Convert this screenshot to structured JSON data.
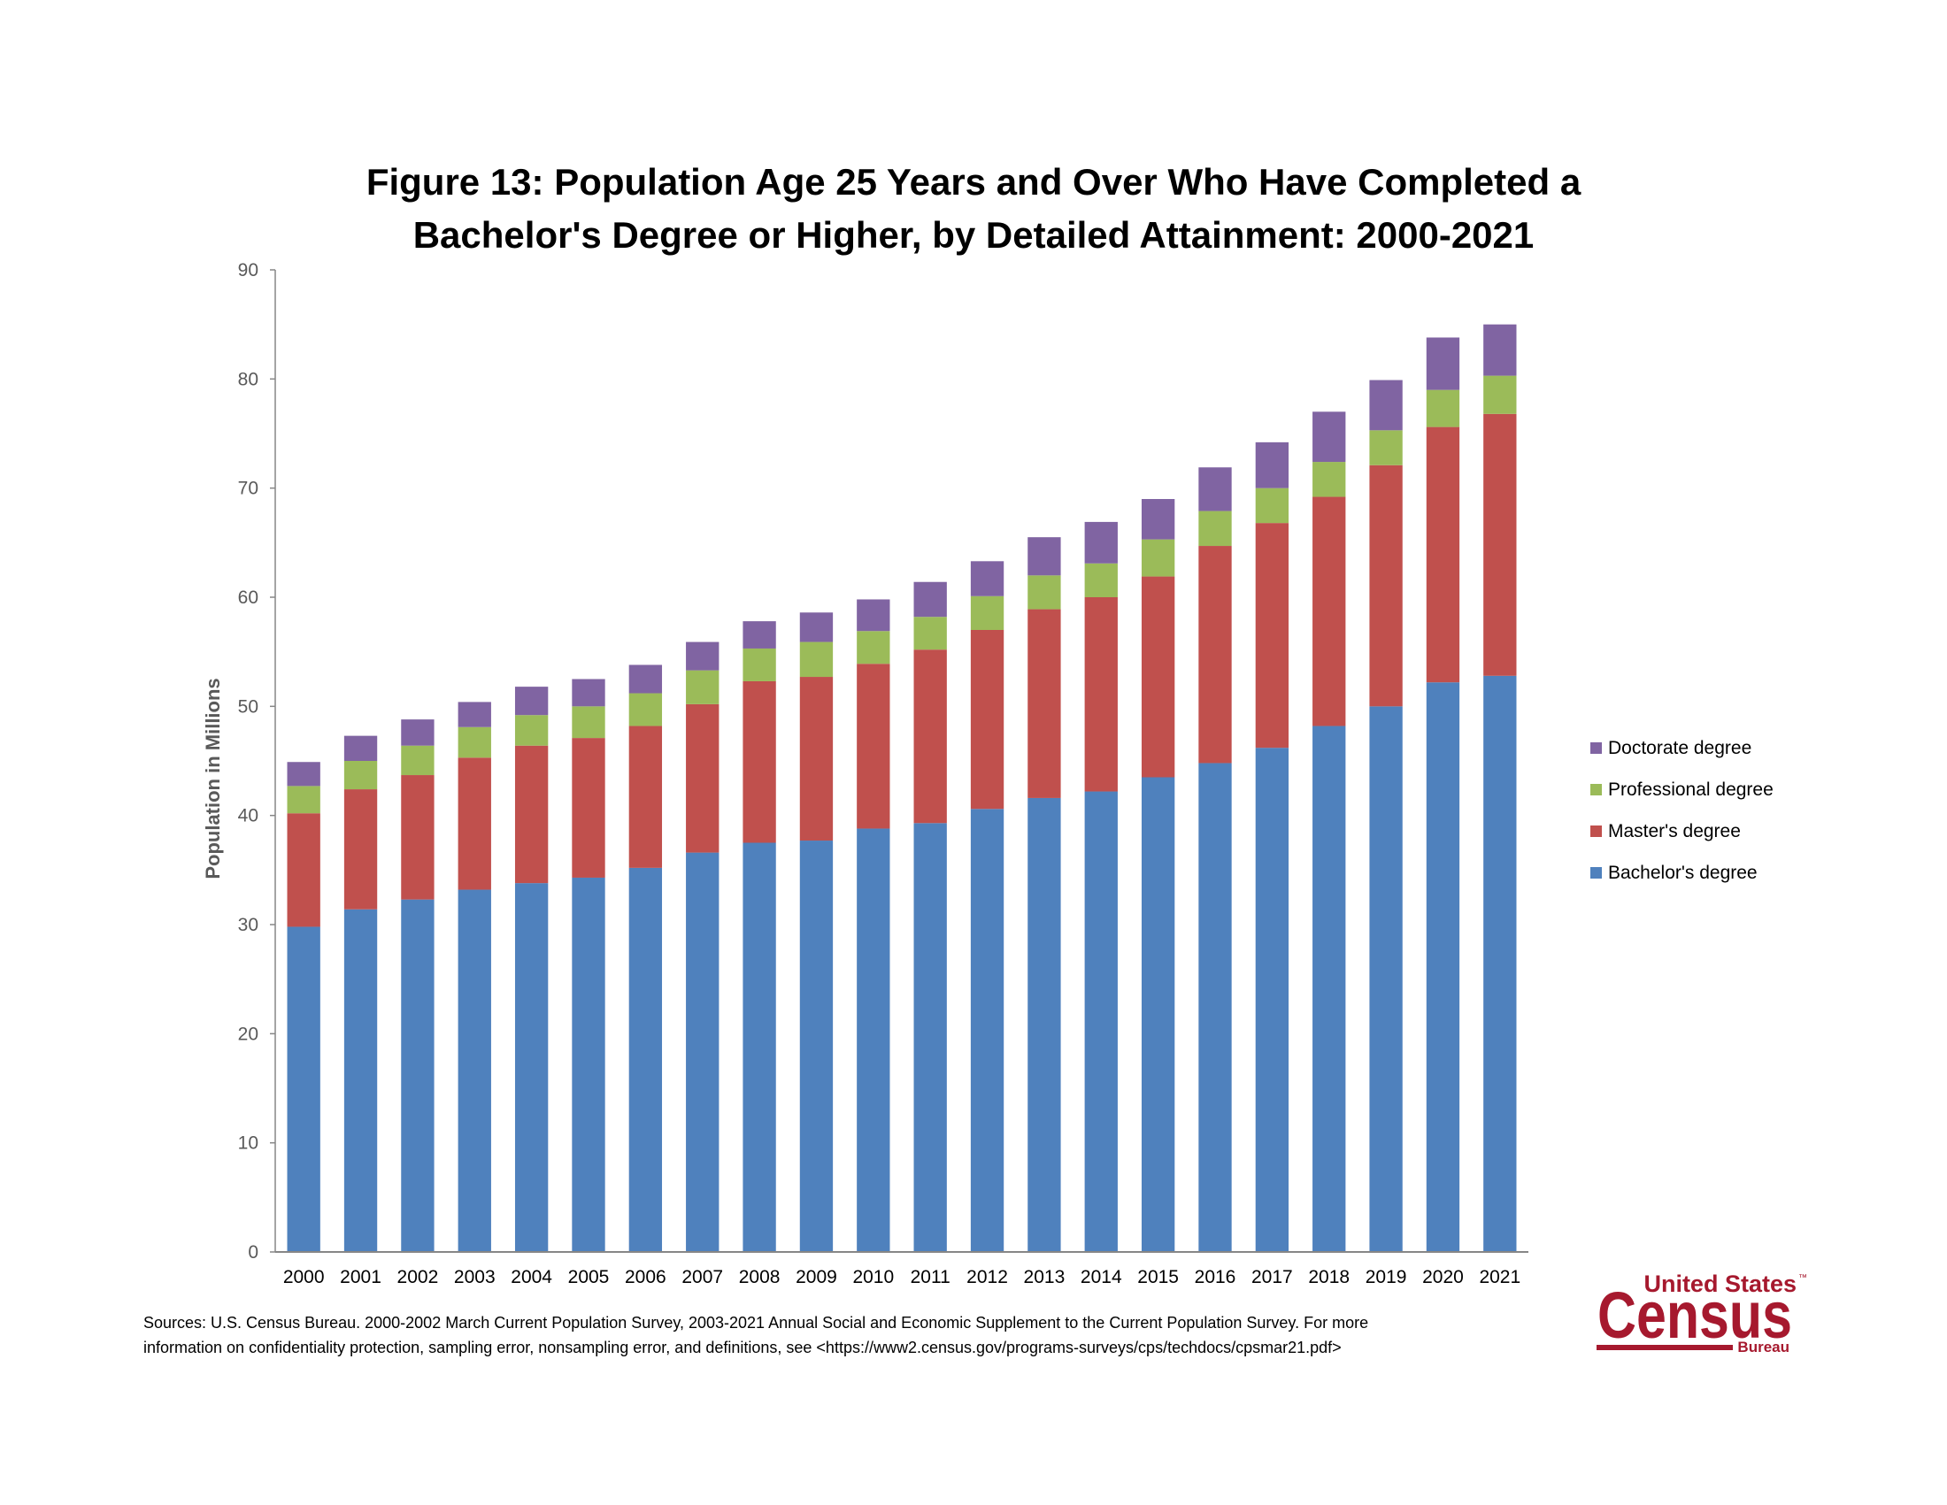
{
  "chart_data": {
    "type": "stacked-bar",
    "title_lines": [
      "Figure 13: Population Age 25 Years and Over Who Have Completed a",
      "Bachelor's Degree or Higher, by Detailed Attainment: 2000-2021"
    ],
    "xlabel": "",
    "ylabel": "Population in Millions",
    "ylim": [
      0,
      90
    ],
    "yticks": [
      0,
      10,
      20,
      30,
      40,
      50,
      60,
      70,
      80,
      90
    ],
    "grid": false,
    "legend_position": "right",
    "categories": [
      "2000",
      "2001",
      "2002",
      "2003",
      "2004",
      "2005",
      "2006",
      "2007",
      "2008",
      "2009",
      "2010",
      "2011",
      "2012",
      "2013",
      "2014",
      "2015",
      "2016",
      "2017",
      "2018",
      "2019",
      "2020",
      "2021"
    ],
    "series": [
      {
        "name": "Bachelor's degree",
        "color": "#4F81BD",
        "values": [
          29.8,
          31.4,
          32.3,
          33.2,
          33.8,
          34.3,
          35.2,
          36.6,
          37.5,
          37.7,
          38.8,
          39.3,
          40.6,
          41.6,
          42.2,
          43.5,
          44.8,
          46.2,
          48.2,
          50.0,
          52.2,
          52.8
        ]
      },
      {
        "name": "Master's degree",
        "color": "#C0504D",
        "values": [
          10.4,
          11.0,
          11.4,
          12.1,
          12.6,
          12.8,
          13.0,
          13.6,
          14.8,
          15.0,
          15.1,
          15.9,
          16.4,
          17.3,
          17.8,
          18.4,
          19.9,
          20.6,
          21.0,
          22.1,
          23.4,
          24.0
        ]
      },
      {
        "name": "Professional degree",
        "color": "#9BBB59",
        "values": [
          2.5,
          2.6,
          2.7,
          2.8,
          2.8,
          2.9,
          3.0,
          3.1,
          3.0,
          3.2,
          3.0,
          3.0,
          3.1,
          3.1,
          3.1,
          3.4,
          3.2,
          3.2,
          3.2,
          3.2,
          3.4,
          3.5
        ]
      },
      {
        "name": "Doctorate degree",
        "color": "#8064A2",
        "values": [
          2.2,
          2.3,
          2.4,
          2.3,
          2.6,
          2.5,
          2.6,
          2.6,
          2.5,
          2.7,
          2.9,
          3.2,
          3.2,
          3.5,
          3.8,
          3.7,
          4.0,
          4.2,
          4.6,
          4.6,
          4.8,
          4.7
        ]
      }
    ],
    "legend_order": [
      "Doctorate degree",
      "Professional degree",
      "Master's degree",
      "Bachelor's degree"
    ]
  },
  "source_note": {
    "line1": "Sources:  U.S. Census Bureau. 2000-2002 March Current Population Survey, 2003-2021 Annual Social and Economic Supplement to the Current Population Survey.  For more",
    "line2": "information on confidentiality protection, sampling error, nonsampling error, and definitions, see <https://www2.census.gov/programs-surveys/cps/techdocs/cpsmar21.pdf>"
  },
  "logo": {
    "line1": "United States",
    "line2": "Census",
    "line3": "Bureau",
    "tm": "™",
    "color": "#A6192E"
  },
  "colors": {
    "axis": "#868686",
    "tick_text": "#595959"
  }
}
